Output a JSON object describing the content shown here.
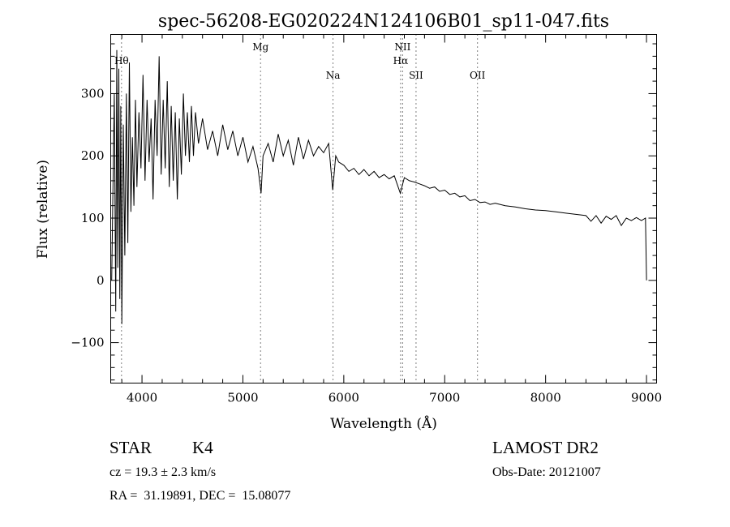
{
  "chart_data": {
    "type": "line",
    "title": "spec-56208-EG020224N124106B01_sp11-047.fits",
    "xlabel": "Wavelength (Å)",
    "ylabel": "Flux (relative)",
    "xlim": [
      3690,
      9100
    ],
    "ylim": [
      -165,
      395
    ],
    "xticks": [
      4000,
      5000,
      6000,
      7000,
      8000,
      9000
    ],
    "yticks": [
      -100,
      0,
      100,
      200,
      300
    ],
    "grid": false,
    "lines": [
      {
        "label": "Hθ",
        "wavelength": 3797,
        "row": 1
      },
      {
        "label": "Mg",
        "wavelength": 5175,
        "row": 0
      },
      {
        "label": "Na",
        "wavelength": 5893,
        "row": 2
      },
      {
        "label": "NII",
        "wavelength": 6583,
        "row": 0
      },
      {
        "label": "Hα",
        "wavelength": 6563,
        "row": 1
      },
      {
        "label": "SII",
        "wavelength": 6716,
        "row": 2
      },
      {
        "label": "OII",
        "wavelength": 7325,
        "row": 2
      }
    ],
    "series": [
      {
        "name": "flux",
        "points": [
          [
            3700,
            0
          ],
          [
            3725,
            300
          ],
          [
            3740,
            -50
          ],
          [
            3750,
            370
          ],
          [
            3760,
            20
          ],
          [
            3770,
            340
          ],
          [
            3780,
            -30
          ],
          [
            3790,
            280
          ],
          [
            3800,
            -70
          ],
          [
            3815,
            250
          ],
          [
            3830,
            40
          ],
          [
            3845,
            300
          ],
          [
            3860,
            60
          ],
          [
            3875,
            350
          ],
          [
            3890,
            110
          ],
          [
            3905,
            230
          ],
          [
            3920,
            120
          ],
          [
            3935,
            290
          ],
          [
            3950,
            150
          ],
          [
            3970,
            270
          ],
          [
            3990,
            180
          ],
          [
            4010,
            330
          ],
          [
            4030,
            160
          ],
          [
            4050,
            290
          ],
          [
            4070,
            190
          ],
          [
            4090,
            260
          ],
          [
            4110,
            130
          ],
          [
            4130,
            290
          ],
          [
            4150,
            200
          ],
          [
            4170,
            360
          ],
          [
            4190,
            170
          ],
          [
            4210,
            290
          ],
          [
            4230,
            180
          ],
          [
            4250,
            320
          ],
          [
            4270,
            150
          ],
          [
            4290,
            280
          ],
          [
            4310,
            160
          ],
          [
            4330,
            270
          ],
          [
            4350,
            130
          ],
          [
            4370,
            260
          ],
          [
            4390,
            170
          ],
          [
            4410,
            300
          ],
          [
            4430,
            200
          ],
          [
            4450,
            270
          ],
          [
            4470,
            190
          ],
          [
            4490,
            280
          ],
          [
            4510,
            200
          ],
          [
            4530,
            270
          ],
          [
            4560,
            220
          ],
          [
            4600,
            260
          ],
          [
            4650,
            210
          ],
          [
            4700,
            240
          ],
          [
            4750,
            200
          ],
          [
            4800,
            250
          ],
          [
            4850,
            210
          ],
          [
            4900,
            240
          ],
          [
            4950,
            200
          ],
          [
            5000,
            230
          ],
          [
            5050,
            190
          ],
          [
            5100,
            215
          ],
          [
            5150,
            180
          ],
          [
            5180,
            140
          ],
          [
            5200,
            200
          ],
          [
            5250,
            220
          ],
          [
            5300,
            190
          ],
          [
            5350,
            235
          ],
          [
            5400,
            200
          ],
          [
            5450,
            225
          ],
          [
            5500,
            185
          ],
          [
            5550,
            230
          ],
          [
            5600,
            195
          ],
          [
            5650,
            225
          ],
          [
            5700,
            200
          ],
          [
            5750,
            215
          ],
          [
            5800,
            205
          ],
          [
            5850,
            220
          ],
          [
            5890,
            145
          ],
          [
            5920,
            200
          ],
          [
            5950,
            190
          ],
          [
            6000,
            185
          ],
          [
            6050,
            175
          ],
          [
            6100,
            180
          ],
          [
            6150,
            170
          ],
          [
            6200,
            178
          ],
          [
            6250,
            168
          ],
          [
            6300,
            175
          ],
          [
            6350,
            165
          ],
          [
            6400,
            170
          ],
          [
            6450,
            163
          ],
          [
            6500,
            168
          ],
          [
            6560,
            140
          ],
          [
            6600,
            165
          ],
          [
            6650,
            160
          ],
          [
            6700,
            158
          ],
          [
            6750,
            155
          ],
          [
            6800,
            152
          ],
          [
            6850,
            148
          ],
          [
            6900,
            150
          ],
          [
            6950,
            143
          ],
          [
            7000,
            145
          ],
          [
            7050,
            138
          ],
          [
            7100,
            140
          ],
          [
            7150,
            134
          ],
          [
            7200,
            136
          ],
          [
            7250,
            128
          ],
          [
            7300,
            130
          ],
          [
            7350,
            125
          ],
          [
            7400,
            126
          ],
          [
            7450,
            122
          ],
          [
            7500,
            124
          ],
          [
            7600,
            120
          ],
          [
            7700,
            118
          ],
          [
            7800,
            115
          ],
          [
            7900,
            113
          ],
          [
            8000,
            112
          ],
          [
            8100,
            110
          ],
          [
            8200,
            108
          ],
          [
            8300,
            106
          ],
          [
            8400,
            104
          ],
          [
            8450,
            95
          ],
          [
            8500,
            104
          ],
          [
            8550,
            92
          ],
          [
            8600,
            103
          ],
          [
            8650,
            98
          ],
          [
            8700,
            104
          ],
          [
            8750,
            88
          ],
          [
            8800,
            100
          ],
          [
            8850,
            96
          ],
          [
            8900,
            101
          ],
          [
            8950,
            96
          ],
          [
            8990,
            100
          ],
          [
            9000,
            0
          ]
        ]
      }
    ]
  },
  "info": {
    "class": "STAR",
    "subclass": "K4",
    "survey": "LAMOST DR2",
    "cz": "cz = 19.3 ± 2.3 km/s",
    "obs_date": "Obs-Date: 20121007",
    "coords": "RA =  31.19891, DEC =  15.08077"
  }
}
